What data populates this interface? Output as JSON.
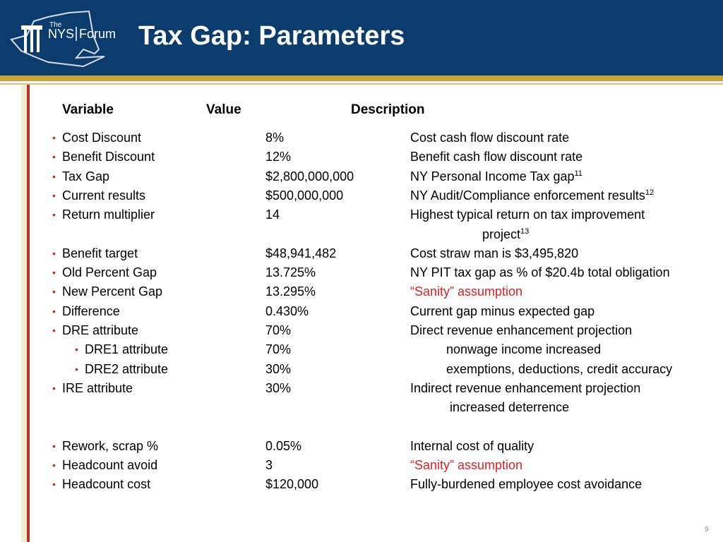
{
  "header": {
    "logo": {
      "small": "The",
      "left": "NYS",
      "right": "Forum"
    },
    "title": "Tax Gap: Parameters"
  },
  "table": {
    "columns": [
      "Variable",
      "Value",
      "Description"
    ],
    "groups": [
      [
        {
          "level": 1,
          "variable": "Cost Discount",
          "value": "8%",
          "description": "Cost cash flow discount rate"
        },
        {
          "level": 1,
          "variable": "Benefit Discount",
          "value": "12%",
          "description": "Benefit cash flow discount rate"
        },
        {
          "level": 1,
          "variable": "Tax Gap",
          "value": "$2,800,000,000",
          "description": "NY Personal Income Tax gap",
          "sup": "11"
        },
        {
          "level": 1,
          "variable": "Current results",
          "value": "$500,000,000",
          "description": "NY Audit/Compliance enforcement results",
          "sup": "12"
        },
        {
          "level": 1,
          "variable": "Return multiplier",
          "value": "14",
          "description": "Highest typical return on tax improvement",
          "continuation": "project",
          "continuation_sup": "13"
        },
        {
          "level": 1,
          "variable": "Benefit target",
          "value": "$48,941,482",
          "description": "Cost straw man is $3,495,820"
        },
        {
          "level": 1,
          "variable": "Old Percent Gap",
          "value": "13.725%",
          "description": "NY PIT tax gap as % of $20.4b total obligation"
        },
        {
          "level": 1,
          "variable": "New Percent Gap",
          "value": "13.295%",
          "description": "“Sanity” assumption",
          "highlight": true
        },
        {
          "level": 1,
          "variable": "Difference",
          "value": "0.430%",
          "description": "Current gap minus expected gap"
        },
        {
          "level": 1,
          "variable": "DRE attribute",
          "value": "70%",
          "description": "Direct revenue enhancement projection"
        },
        {
          "level": 2,
          "variable": "DRE1 attribute",
          "value": "70%",
          "description": "nonwage income increased"
        },
        {
          "level": 2,
          "variable": "DRE2 attribute",
          "value": "30%",
          "description": "exemptions, deductions, credit accuracy"
        },
        {
          "level": 1,
          "variable": "IRE attribute",
          "value": "30%",
          "description": "Indirect revenue enhancement projection",
          "continuation": "increased deterrence"
        }
      ],
      [
        {
          "level": 1,
          "variable": "Rework, scrap %",
          "value": "0.05%",
          "description": "Internal cost of quality"
        },
        {
          "level": 1,
          "variable": "Headcount avoid",
          "value": "3",
          "description": "“Sanity” assumption",
          "highlight": true
        },
        {
          "level": 1,
          "variable": "Headcount cost",
          "value": "$120,000",
          "description": "Fully-burdened employee cost avoidance"
        }
      ]
    ]
  },
  "page_number": "9"
}
